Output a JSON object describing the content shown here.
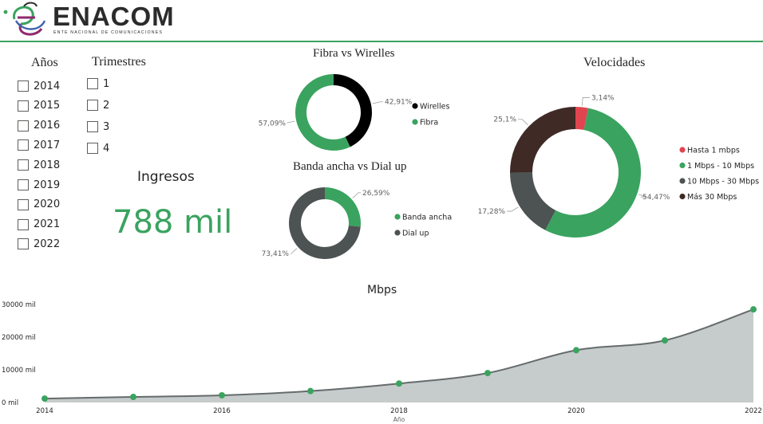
{
  "header": {
    "brand": "ENACOM",
    "tagline": "ENTE NACIONAL DE COMUNICACIONES",
    "accent_color": "#3aa35f"
  },
  "slicers": {
    "years": {
      "title": "Años",
      "items": [
        "2014",
        "2015",
        "2016",
        "2017",
        "2018",
        "2019",
        "2020",
        "2021",
        "2022"
      ]
    },
    "quarters": {
      "title": "Trimestres",
      "items": [
        "1",
        "2",
        "3",
        "4"
      ]
    }
  },
  "kpi": {
    "label": "Ingresos",
    "value": "788 mil",
    "color": "#3aa35f"
  },
  "chart_data": [
    {
      "type": "pie",
      "variant": "donut",
      "title": "Fibra vs Wirelles",
      "legend_position": "right",
      "slices": [
        {
          "label": "Wirelles",
          "value": 42.91,
          "value_label": "42,91%",
          "color": "#000000"
        },
        {
          "label": "Fibra",
          "value": 57.09,
          "value_label": "57,09%",
          "color": "#3aa35f"
        }
      ]
    },
    {
      "type": "pie",
      "variant": "donut",
      "title": "Banda ancha vs Dial up",
      "legend_position": "right",
      "slices": [
        {
          "label": "Banda ancha",
          "value": 26.59,
          "value_label": "26,59%",
          "color": "#3aa35f"
        },
        {
          "label": "Dial up",
          "value": 73.41,
          "value_label": "73,41%",
          "color": "#4d5353"
        }
      ]
    },
    {
      "type": "pie",
      "variant": "donut",
      "title": "Velocidades",
      "legend_position": "right",
      "slices": [
        {
          "label": "Hasta 1 mbps",
          "value": 3.14,
          "value_label": "3,14%",
          "color": "#e0454f"
        },
        {
          "label": "1 Mbps - 10 Mbps",
          "value": 54.47,
          "value_label": "54,47%",
          "color": "#3aa35f"
        },
        {
          "label": "10 Mbps - 30 Mbps",
          "value": 17.28,
          "value_label": "17,28%",
          "color": "#4d5353"
        },
        {
          "label": "Más 30 Mbps",
          "value": 25.1,
          "value_label": "25,1%",
          "color": "#3f2a26"
        }
      ]
    },
    {
      "type": "area",
      "title": "Mbps",
      "xlabel": "Año",
      "ylabel": "",
      "x": [
        2014,
        2015,
        2016,
        2017,
        2018,
        2019,
        2020,
        2021,
        2022
      ],
      "xticks": [
        "2014",
        "2016",
        "2018",
        "2020",
        "2022"
      ],
      "yticks": [
        "0 mil",
        "10000 mil",
        "20000 mil",
        "30000 mil"
      ],
      "ylim": [
        0,
        30000
      ],
      "series": [
        {
          "values": [
            1200,
            1700,
            2200,
            3500,
            5800,
            9000,
            16000,
            19000,
            28500
          ]
        }
      ],
      "grid": false,
      "line_color": "#666b6b",
      "fill_color": "#c6cbcb",
      "marker_color": "#3aa35f"
    }
  ]
}
